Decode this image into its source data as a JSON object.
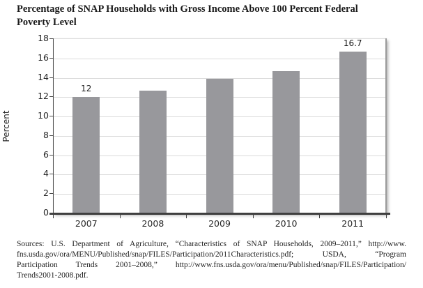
{
  "title_lines": [
    "Percentage of SNAP Households with Gross Income Above 100 Percent Federal",
    "Poverty Level"
  ],
  "chart_data": {
    "type": "bar",
    "title": "Percentage of SNAP Households with Gross Income Above 100 Percent Federal Poverty Level",
    "categories": [
      "2007",
      "2008",
      "2009",
      "2010",
      "2011"
    ],
    "values": [
      12,
      12.7,
      13.9,
      14.7,
      16.7
    ],
    "data_labels": [
      "12",
      null,
      null,
      null,
      "16.7"
    ],
    "xlabel": "",
    "ylabel": "Percent",
    "ylim": [
      0,
      18
    ],
    "ytick_step": 2,
    "grid": true,
    "legend": "none",
    "bar_color": "#98989C",
    "gridline_color": "#DADADA",
    "axis_color": "#3F3F3F"
  },
  "sources": {
    "lines": [
      "Sources: U.S. Department of Agriculture, “Characteristics of SNAP Households, 2009–2011,” http://www.",
      "fns.usda.gov/ora/MENU/Published/snap/FILES/Participation/2011Characteristics.pdf; USDA, “Program",
      "Participation Trends 2001–2008,” http://www.fns.usda.gov/ora/menu/Published/snap/FILES/Participation/",
      "Trends2001-2008.pdf."
    ]
  }
}
